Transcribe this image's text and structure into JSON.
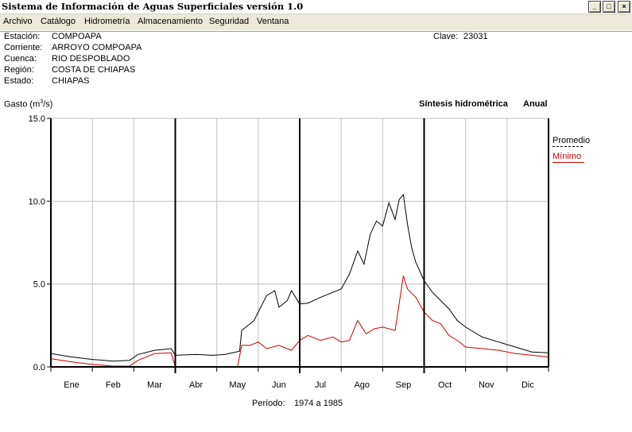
{
  "window": {
    "title": "Sistema de Información de Aguas Superficiales  versión 1.0",
    "buttons": [
      "_",
      "□",
      "×"
    ]
  },
  "menu": {
    "items": [
      "Archivo",
      "Catálogo",
      "Hidrometría",
      "Almacenamiento",
      "Seguridad",
      "Ventana"
    ]
  },
  "station": {
    "estacion_label": "Estación:",
    "estacion": "COMPOAPA",
    "corriente_label": "Corriente:",
    "corriente": "ARROYO COMPOAPA",
    "cuenca_label": "Cuenca:",
    "cuenca": "RIO DESPOBLADO",
    "region_label": "Región:",
    "region": "COSTA DE CHIAPAS",
    "estado_label": "Estado:",
    "estado": "CHIAPAS",
    "clave_label": "Clave:",
    "clave": "23031"
  },
  "header": {
    "ylabel_prefix": "Gasto (m",
    "ylabel_sup": "3",
    "ylabel_suffix": "/s)",
    "synthesis": "Síntesis hidrométrica",
    "mode": "Anual"
  },
  "period": {
    "label": "Período:",
    "value": "1974 a 1985"
  },
  "colors": {
    "promedio": "#000000",
    "minimo": "#cc0000",
    "grid": "#c0c0c0"
  },
  "chart_data": {
    "type": "line",
    "ylim": [
      0,
      15
    ],
    "yticks": [
      "0.0",
      "5.0",
      "10.0",
      "15.0"
    ],
    "ytick_values": [
      0,
      5,
      10,
      15
    ],
    "xlim": [
      0,
      12
    ],
    "categories": [
      "Ene",
      "Feb",
      "Mar",
      "Abr",
      "May",
      "Jun",
      "Jul",
      "Ago",
      "Sep",
      "Oct",
      "Nov",
      "Dic"
    ],
    "legend": [
      "Promedio",
      "Mínimo"
    ],
    "legend_position": "right",
    "grid": true,
    "series": [
      {
        "name": "Promedio",
        "x": [
          0,
          0.5,
          1,
          1.5,
          1.9,
          2.1,
          2.5,
          2.9,
          3.0,
          3.5,
          3.9,
          4.2,
          4.55,
          4.6,
          4.9,
          5.0,
          5.2,
          5.4,
          5.5,
          5.7,
          5.8,
          6.0,
          6.2,
          6.5,
          7.0,
          7.2,
          7.4,
          7.55,
          7.7,
          7.85,
          8.0,
          8.15,
          8.3,
          8.4,
          8.5,
          8.6,
          8.7,
          8.8,
          9.0,
          9.2,
          9.4,
          9.6,
          9.8,
          10.0,
          10.4,
          10.8,
          11.2,
          11.6,
          12.0
        ],
        "values": [
          0.8,
          0.6,
          0.45,
          0.35,
          0.4,
          0.75,
          1.0,
          1.1,
          0.7,
          0.75,
          0.7,
          0.75,
          0.95,
          2.2,
          2.8,
          3.3,
          4.3,
          4.6,
          3.6,
          4.0,
          4.6,
          3.8,
          3.85,
          4.2,
          4.7,
          5.6,
          7.0,
          6.2,
          8.0,
          8.8,
          8.5,
          9.9,
          8.9,
          10.1,
          10.4,
          8.6,
          7.2,
          6.3,
          5.2,
          4.5,
          4.0,
          3.5,
          2.8,
          2.4,
          1.8,
          1.5,
          1.2,
          0.9,
          0.85
        ]
      },
      {
        "name": "Mínimo",
        "x": [
          0,
          0.5,
          1,
          1.5,
          1.9,
          2.1,
          2.5,
          2.9,
          3.0,
          3.5,
          4.0,
          4.5,
          4.6,
          4.8,
          5.0,
          5.2,
          5.5,
          5.8,
          6.0,
          6.2,
          6.5,
          6.8,
          7.0,
          7.2,
          7.4,
          7.6,
          7.8,
          8.0,
          8.3,
          8.5,
          8.6,
          8.8,
          9.0,
          9.2,
          9.4,
          9.6,
          9.8,
          10.0,
          10.4,
          10.8,
          11.2,
          11.6,
          12.0
        ],
        "values": [
          0.5,
          0.3,
          0.15,
          0.05,
          0.05,
          0.4,
          0.8,
          0.85,
          0.0,
          0.0,
          0.0,
          0.0,
          1.3,
          1.3,
          1.5,
          1.1,
          1.3,
          1.0,
          1.6,
          1.9,
          1.6,
          1.8,
          1.5,
          1.6,
          2.8,
          2.0,
          2.3,
          2.4,
          2.2,
          5.5,
          4.7,
          4.2,
          3.3,
          2.8,
          2.6,
          1.9,
          1.6,
          1.2,
          1.1,
          1.0,
          0.8,
          0.7,
          0.6
        ]
      }
    ]
  }
}
